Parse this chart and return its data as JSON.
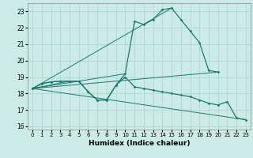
{
  "xlabel": "Humidex (Indice chaleur)",
  "bg_color": "#cceae6",
  "grid_color": "#aad4ce",
  "line_color": "#1a7a6e",
  "xlim": [
    -0.5,
    23.5
  ],
  "ylim": [
    15.8,
    23.5
  ],
  "yticks": [
    16,
    17,
    18,
    19,
    20,
    21,
    22,
    23
  ],
  "xticks": [
    0,
    1,
    2,
    3,
    4,
    5,
    6,
    7,
    8,
    9,
    10,
    11,
    12,
    13,
    14,
    15,
    16,
    17,
    18,
    19,
    20,
    21,
    22,
    23
  ],
  "curve_up": {
    "x": [
      0,
      1,
      2,
      3,
      4,
      5,
      6,
      7,
      8,
      9,
      10,
      11,
      12,
      13,
      14,
      15,
      16,
      17,
      18,
      19,
      20
    ],
    "y": [
      18.3,
      18.6,
      18.7,
      18.75,
      18.75,
      18.75,
      18.1,
      17.6,
      17.6,
      18.5,
      19.2,
      22.4,
      22.2,
      22.5,
      23.1,
      23.2,
      22.5,
      21.8,
      21.1,
      19.4,
      19.3
    ]
  },
  "curve_down": {
    "x": [
      0,
      1,
      2,
      3,
      4,
      5,
      6,
      7,
      8,
      9,
      10,
      11,
      12,
      13,
      14,
      15,
      16,
      17,
      18,
      19,
      20,
      21,
      22,
      23
    ],
    "y": [
      18.3,
      18.6,
      18.7,
      18.75,
      18.75,
      18.75,
      18.1,
      17.6,
      17.6,
      18.5,
      19.0,
      18.4,
      18.3,
      18.2,
      18.1,
      18.0,
      17.9,
      17.8,
      17.6,
      17.4,
      17.3,
      17.5,
      16.5,
      16.4
    ]
  },
  "fan_endpoints": {
    "x": [
      4,
      10,
      15,
      20,
      23
    ],
    "y": [
      18.75,
      19.2,
      23.2,
      19.3,
      16.4
    ],
    "origin_x": 0,
    "origin_y": 18.3
  }
}
